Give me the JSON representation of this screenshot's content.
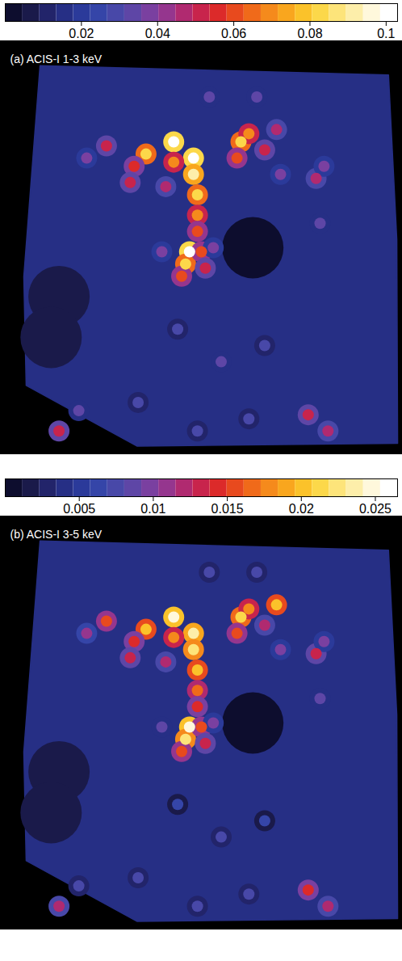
{
  "chart_data": [
    {
      "type": "heatmap",
      "title": "(a) ACIS-I 1-3 keV",
      "colorbar": {
        "range": [
          0,
          0.103
        ],
        "ticks": [
          0.02,
          0.04,
          0.06,
          0.08,
          0.1
        ]
      },
      "colors": [
        "#0d0d2e",
        "#1a1a4a",
        "#22246a",
        "#262f85",
        "#2b3a9a",
        "#3545a8",
        "#4848a8",
        "#5e46a6",
        "#7a40a0",
        "#95368e",
        "#b02a70",
        "#c8244c",
        "#dc2a2a",
        "#e84a1e",
        "#f06a1a",
        "#f58a1c",
        "#f9a61e",
        "#fbc22a",
        "#fcd84a",
        "#fde47a",
        "#fdeeaa",
        "#fff8dc",
        "#ffffff"
      ],
      "field_value": 0.014,
      "voids": [
        {
          "x": 0.63,
          "y": 0.5,
          "value": 0.003
        },
        {
          "x": 0.14,
          "y": 0.62,
          "value": 0.008
        },
        {
          "x": 0.12,
          "y": 0.72,
          "value": 0.008
        }
      ],
      "features": [
        {
          "x": 0.48,
          "y": 0.28,
          "value": 0.1
        },
        {
          "x": 0.48,
          "y": 0.32,
          "value": 0.09
        },
        {
          "x": 0.49,
          "y": 0.37,
          "value": 0.085
        },
        {
          "x": 0.49,
          "y": 0.42,
          "value": 0.07
        },
        {
          "x": 0.49,
          "y": 0.46,
          "value": 0.06
        },
        {
          "x": 0.43,
          "y": 0.24,
          "value": 0.1
        },
        {
          "x": 0.43,
          "y": 0.29,
          "value": 0.07
        },
        {
          "x": 0.36,
          "y": 0.27,
          "value": 0.085
        },
        {
          "x": 0.33,
          "y": 0.3,
          "value": 0.055
        },
        {
          "x": 0.26,
          "y": 0.25,
          "value": 0.05
        },
        {
          "x": 0.21,
          "y": 0.28,
          "value": 0.04
        },
        {
          "x": 0.32,
          "y": 0.34,
          "value": 0.05
        },
        {
          "x": 0.41,
          "y": 0.35,
          "value": 0.045
        },
        {
          "x": 0.6,
          "y": 0.24,
          "value": 0.085
        },
        {
          "x": 0.62,
          "y": 0.22,
          "value": 0.07
        },
        {
          "x": 0.59,
          "y": 0.28,
          "value": 0.06
        },
        {
          "x": 0.66,
          "y": 0.26,
          "value": 0.05
        },
        {
          "x": 0.69,
          "y": 0.21,
          "value": 0.045
        },
        {
          "x": 0.7,
          "y": 0.32,
          "value": 0.04
        },
        {
          "x": 0.64,
          "y": 0.13,
          "value": 0.035
        },
        {
          "x": 0.52,
          "y": 0.13,
          "value": 0.035
        },
        {
          "x": 0.79,
          "y": 0.33,
          "value": 0.045
        },
        {
          "x": 0.81,
          "y": 0.3,
          "value": 0.04
        },
        {
          "x": 0.8,
          "y": 0.44,
          "value": 0.035
        },
        {
          "x": 0.47,
          "y": 0.51,
          "value": 0.1
        },
        {
          "x": 0.46,
          "y": 0.54,
          "value": 0.085
        },
        {
          "x": 0.45,
          "y": 0.57,
          "value": 0.06
        },
        {
          "x": 0.5,
          "y": 0.51,
          "value": 0.06
        },
        {
          "x": 0.51,
          "y": 0.55,
          "value": 0.05
        },
        {
          "x": 0.4,
          "y": 0.51,
          "value": 0.04
        },
        {
          "x": 0.53,
          "y": 0.5,
          "value": 0.04
        },
        {
          "x": 0.44,
          "y": 0.7,
          "value": 0.03
        },
        {
          "x": 0.55,
          "y": 0.78,
          "value": 0.035
        },
        {
          "x": 0.66,
          "y": 0.74,
          "value": 0.03
        },
        {
          "x": 0.77,
          "y": 0.91,
          "value": 0.05
        },
        {
          "x": 0.82,
          "y": 0.95,
          "value": 0.045
        },
        {
          "x": 0.14,
          "y": 0.95,
          "value": 0.05
        },
        {
          "x": 0.19,
          "y": 0.9,
          "value": 0.035
        },
        {
          "x": 0.34,
          "y": 0.88,
          "value": 0.03
        },
        {
          "x": 0.49,
          "y": 0.95,
          "value": 0.03
        },
        {
          "x": 0.62,
          "y": 0.92,
          "value": 0.03
        }
      ]
    },
    {
      "type": "heatmap",
      "title": "(b) ACIS-I 3-5 keV",
      "colorbar": {
        "range": [
          0,
          0.0265
        ],
        "ticks": [
          0.005,
          0.01,
          0.015,
          0.02,
          0.025
        ]
      },
      "colors": [
        "#0d0d2e",
        "#1a1a4a",
        "#22246a",
        "#262f85",
        "#2b3a9a",
        "#3545a8",
        "#4848a8",
        "#5e46a6",
        "#7a40a0",
        "#95368e",
        "#b02a70",
        "#c8244c",
        "#dc2a2a",
        "#e84a1e",
        "#f06a1a",
        "#f58a1c",
        "#f9a61e",
        "#fbc22a",
        "#fcd84a",
        "#fde47a",
        "#fdeeaa",
        "#fff8dc",
        "#ffffff"
      ],
      "field_value": 0.0035,
      "voids": [
        {
          "x": 0.63,
          "y": 0.5,
          "value": 0.0006
        },
        {
          "x": 0.14,
          "y": 0.62,
          "value": 0.0015
        },
        {
          "x": 0.12,
          "y": 0.72,
          "value": 0.0015
        }
      ],
      "features": [
        {
          "x": 0.48,
          "y": 0.28,
          "value": 0.024
        },
        {
          "x": 0.48,
          "y": 0.32,
          "value": 0.022
        },
        {
          "x": 0.49,
          "y": 0.37,
          "value": 0.02
        },
        {
          "x": 0.49,
          "y": 0.42,
          "value": 0.017
        },
        {
          "x": 0.49,
          "y": 0.46,
          "value": 0.014
        },
        {
          "x": 0.43,
          "y": 0.24,
          "value": 0.025
        },
        {
          "x": 0.43,
          "y": 0.29,
          "value": 0.018
        },
        {
          "x": 0.36,
          "y": 0.27,
          "value": 0.02
        },
        {
          "x": 0.33,
          "y": 0.3,
          "value": 0.014
        },
        {
          "x": 0.26,
          "y": 0.25,
          "value": 0.015
        },
        {
          "x": 0.21,
          "y": 0.28,
          "value": 0.011
        },
        {
          "x": 0.32,
          "y": 0.34,
          "value": 0.013
        },
        {
          "x": 0.41,
          "y": 0.35,
          "value": 0.012
        },
        {
          "x": 0.6,
          "y": 0.24,
          "value": 0.021
        },
        {
          "x": 0.62,
          "y": 0.22,
          "value": 0.018
        },
        {
          "x": 0.59,
          "y": 0.28,
          "value": 0.015
        },
        {
          "x": 0.66,
          "y": 0.26,
          "value": 0.012
        },
        {
          "x": 0.69,
          "y": 0.21,
          "value": 0.02
        },
        {
          "x": 0.7,
          "y": 0.32,
          "value": 0.01
        },
        {
          "x": 0.64,
          "y": 0.13,
          "value": 0.008
        },
        {
          "x": 0.52,
          "y": 0.13,
          "value": 0.008
        },
        {
          "x": 0.79,
          "y": 0.33,
          "value": 0.013
        },
        {
          "x": 0.81,
          "y": 0.3,
          "value": 0.01
        },
        {
          "x": 0.8,
          "y": 0.44,
          "value": 0.009
        },
        {
          "x": 0.47,
          "y": 0.51,
          "value": 0.025
        },
        {
          "x": 0.46,
          "y": 0.54,
          "value": 0.022
        },
        {
          "x": 0.45,
          "y": 0.57,
          "value": 0.016
        },
        {
          "x": 0.5,
          "y": 0.51,
          "value": 0.015
        },
        {
          "x": 0.51,
          "y": 0.55,
          "value": 0.013
        },
        {
          "x": 0.4,
          "y": 0.51,
          "value": 0.009
        },
        {
          "x": 0.53,
          "y": 0.5,
          "value": 0.01
        },
        {
          "x": 0.44,
          "y": 0.7,
          "value": 0.006
        },
        {
          "x": 0.55,
          "y": 0.78,
          "value": 0.008
        },
        {
          "x": 0.66,
          "y": 0.74,
          "value": 0.006
        },
        {
          "x": 0.77,
          "y": 0.91,
          "value": 0.014
        },
        {
          "x": 0.82,
          "y": 0.95,
          "value": 0.012
        },
        {
          "x": 0.14,
          "y": 0.95,
          "value": 0.012
        },
        {
          "x": 0.19,
          "y": 0.9,
          "value": 0.008
        },
        {
          "x": 0.34,
          "y": 0.88,
          "value": 0.007
        },
        {
          "x": 0.49,
          "y": 0.95,
          "value": 0.008
        },
        {
          "x": 0.62,
          "y": 0.92,
          "value": 0.007
        }
      ]
    }
  ]
}
